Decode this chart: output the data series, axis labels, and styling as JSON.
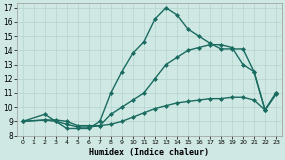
{
  "xlabel": "Humidex (Indice chaleur)",
  "background_color": "#cfe8e4",
  "grid_color": "#b8d8d2",
  "line_color": "#1a6b60",
  "xlim": [
    -0.5,
    23.5
  ],
  "ylim": [
    8,
    17.3
  ],
  "xtick_labels": [
    "0",
    "1",
    "2",
    "3",
    "4",
    "5",
    "6",
    "7",
    "8",
    "9",
    "10",
    "11",
    "12",
    "13",
    "14",
    "15",
    "16",
    "17",
    "18",
    "19",
    "20",
    "21",
    "22",
    "23"
  ],
  "ytick_labels": [
    "8",
    "9",
    "10",
    "11",
    "12",
    "13",
    "14",
    "15",
    "16",
    "17"
  ],
  "curve1_x": [
    0,
    2,
    3,
    4,
    5,
    6,
    7,
    8,
    9,
    10,
    11,
    12,
    13,
    14,
    15,
    16,
    17,
    18,
    19,
    20,
    21,
    22,
    23
  ],
  "curve1_y": [
    9,
    9.5,
    9.0,
    8.5,
    8.5,
    8.5,
    9.0,
    11.0,
    12.5,
    13.8,
    14.6,
    16.2,
    17.0,
    16.5,
    15.5,
    15.0,
    14.5,
    14.1,
    14.1,
    14.1,
    12.5,
    9.8,
    11.0
  ],
  "curve2_x": [
    0,
    2,
    3,
    4,
    5,
    6,
    7,
    8,
    9,
    10,
    11,
    12,
    13,
    14,
    15,
    16,
    17,
    18,
    19,
    20,
    21,
    22,
    23
  ],
  "curve2_y": [
    9,
    9.1,
    9.0,
    8.8,
    8.6,
    8.6,
    8.7,
    9.5,
    10.0,
    10.5,
    11.0,
    12.0,
    13.0,
    13.5,
    14.0,
    14.2,
    14.4,
    14.4,
    14.2,
    13.0,
    12.5,
    9.8,
    11.0
  ],
  "curve3_x": [
    0,
    2,
    3,
    4,
    5,
    6,
    7,
    8,
    9,
    10,
    11,
    12,
    13,
    14,
    15,
    16,
    17,
    18,
    19,
    20,
    21,
    22,
    23
  ],
  "curve3_y": [
    9,
    9.1,
    9.1,
    9.0,
    8.7,
    8.7,
    8.7,
    8.8,
    9.0,
    9.3,
    9.6,
    9.9,
    10.1,
    10.3,
    10.4,
    10.5,
    10.6,
    10.6,
    10.7,
    10.7,
    10.5,
    9.8,
    10.9
  ],
  "marker_size": 2.5,
  "line_width": 1.0
}
